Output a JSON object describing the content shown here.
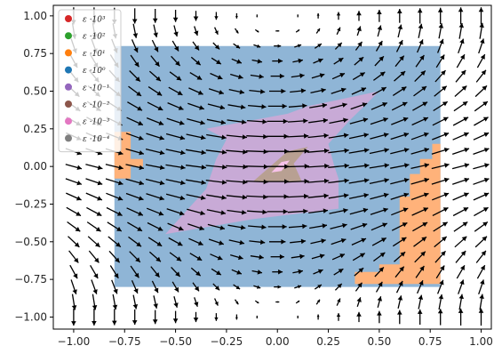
{
  "chart_data": {
    "type": "quiver",
    "title": "",
    "xlabel": "",
    "ylabel": "",
    "xlim": [
      -1.1,
      1.05
    ],
    "ylim": [
      -1.08,
      1.07
    ],
    "x_ticks": [
      "−1.00",
      "−0.75",
      "−0.50",
      "−0.25",
      "0.00",
      "0.25",
      "0.50",
      "0.75",
      "1.00"
    ],
    "x_tick_values": [
      -1.0,
      -0.75,
      -0.5,
      -0.25,
      0.0,
      0.25,
      0.5,
      0.75,
      1.0
    ],
    "y_ticks": [
      "1.00",
      "0.75",
      "0.50",
      "0.25",
      "0.00",
      "−0.25",
      "−0.50",
      "−0.75",
      "−1.00"
    ],
    "y_tick_values": [
      1.0,
      0.75,
      0.5,
      0.25,
      0.0,
      -0.25,
      -0.5,
      -0.75,
      -1.0
    ],
    "grid": false,
    "legend_position": "top-left",
    "legend": [
      {
        "label": "ε ·10³",
        "color": "#d62728"
      },
      {
        "label": "ε ·10²",
        "color": "#2ca02c"
      },
      {
        "label": "ε ·10¹",
        "color": "#ff7f0e"
      },
      {
        "label": "ε ·10⁰",
        "color": "#1f77b4"
      },
      {
        "label": "ε ·10⁻¹",
        "color": "#9467bd"
      },
      {
        "label": "ε ·10⁻²",
        "color": "#8c564b"
      },
      {
        "label": "ε ·10⁻³",
        "color": "#e377c2"
      },
      {
        "label": "ε ·10⁻⁴",
        "color": "#7f7f7f"
      }
    ],
    "regions": [
      {
        "level": "ε ·10⁰",
        "color": "#8fb5d6",
        "polygon": [
          [
            -0.8,
            0.8
          ],
          [
            0.8,
            0.8
          ],
          [
            0.8,
            -0.8
          ],
          [
            -0.8,
            -0.8
          ]
        ]
      },
      {
        "level": "ε ·10¹",
        "color": "#ffb27a",
        "polygon": [
          [
            -0.8,
            0.23
          ],
          [
            -0.72,
            0.23
          ],
          [
            -0.72,
            0.05
          ],
          [
            -0.66,
            0.05
          ],
          [
            -0.66,
            0.0
          ],
          [
            -0.72,
            0.0
          ],
          [
            -0.72,
            -0.08
          ],
          [
            -0.8,
            -0.08
          ]
        ]
      },
      {
        "level": "ε ·10¹",
        "color": "#ffb27a",
        "polygon": [
          [
            0.8,
            0.15
          ],
          [
            0.76,
            0.15
          ],
          [
            0.76,
            0.05
          ],
          [
            0.7,
            0.05
          ],
          [
            0.7,
            -0.05
          ],
          [
            0.65,
            -0.05
          ],
          [
            0.65,
            -0.2
          ],
          [
            0.6,
            -0.2
          ],
          [
            0.6,
            -0.45
          ],
          [
            0.6,
            -0.65
          ],
          [
            0.5,
            -0.65
          ],
          [
            0.5,
            -0.7
          ],
          [
            0.38,
            -0.7
          ],
          [
            0.38,
            -0.78
          ],
          [
            0.8,
            -0.78
          ]
        ]
      },
      {
        "level": "ε ·10⁻¹",
        "color": "#c8aad6",
        "polygon": [
          [
            -0.35,
            0.25
          ],
          [
            0.05,
            0.35
          ],
          [
            0.15,
            0.4
          ],
          [
            0.5,
            0.5
          ],
          [
            0.35,
            0.3
          ],
          [
            0.25,
            0.15
          ],
          [
            0.28,
            0.0
          ],
          [
            0.3,
            -0.08
          ],
          [
            0.3,
            -0.28
          ],
          [
            -0.12,
            -0.35
          ],
          [
            -0.55,
            -0.45
          ],
          [
            -0.35,
            -0.15
          ],
          [
            -0.3,
            0.05
          ],
          [
            -0.25,
            0.18
          ]
        ]
      },
      {
        "level": "ε ·10⁻²",
        "color": "#b8a092",
        "polygon": [
          [
            -0.12,
            -0.1
          ],
          [
            0.05,
            0.1
          ],
          [
            0.15,
            0.13
          ],
          [
            0.08,
            0.02
          ],
          [
            0.12,
            -0.1
          ],
          [
            -0.05,
            -0.1
          ]
        ]
      },
      {
        "level": "ε ·10⁻³",
        "color": "#f7c2ea",
        "polygon": [
          [
            -0.03,
            -0.04
          ],
          [
            0.02,
            0.03
          ],
          [
            0.06,
            0.04
          ],
          [
            0.02,
            -0.03
          ]
        ]
      }
    ],
    "vector_field": {
      "x_start": -1.0,
      "x_end": 1.0,
      "x_step": 0.1,
      "y_start": -1.0,
      "y_end": 1.0,
      "y_step": 0.1,
      "u": "cos(pi*y/2)*(1-0.3*|x|)",
      "v": "0.55*sin(pi*x/2)*(0.35+|y|)",
      "color": "#000000"
    }
  }
}
